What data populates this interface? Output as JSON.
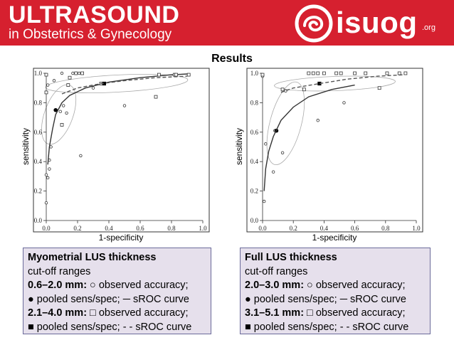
{
  "header": {
    "title": "ULTRASOUND",
    "subtitle": "in Obstetrics & Gynecology",
    "logo_text": "isuog",
    "logo_suffix": ".org",
    "colors": {
      "header_bg": "#d6202f",
      "header_text": "#ffffff"
    }
  },
  "slide": {
    "title": "Results"
  },
  "chart_data": [
    {
      "type": "scatter",
      "title": "",
      "xlabel": "1-specificity",
      "ylabel": "sensitivity",
      "xlim": [
        0,
        1
      ],
      "ylim": [
        0,
        1
      ],
      "xticks": [
        "0.0",
        "0.2",
        "0.4",
        "0.6",
        "0.8",
        "1.0"
      ],
      "yticks": [
        "0.0",
        "0.2",
        "0.4",
        "0.6",
        "0.8",
        "1.0"
      ],
      "series": [
        {
          "name": "0.6–2.0 mm: observed accuracy",
          "marker": "circle-open",
          "points": [
            [
              0.01,
              0.29
            ],
            [
              0.0,
              0.31
            ],
            [
              0.0,
              0.12
            ],
            [
              0.02,
              0.35
            ],
            [
              0.03,
              0.5
            ],
            [
              0.02,
              0.41
            ],
            [
              0.06,
              0.75
            ],
            [
              0.09,
              0.74
            ],
            [
              0.11,
              0.78
            ],
            [
              0.13,
              0.73
            ],
            [
              0.22,
              0.44
            ],
            [
              0.05,
              0.95
            ],
            [
              0.1,
              1.0
            ],
            [
              0.17,
              1.0
            ],
            [
              0.21,
              1.0
            ],
            [
              0.3,
              0.9
            ],
            [
              0.5,
              0.78
            ],
            [
              0.01,
              0.92
            ],
            [
              0.0,
              0.99
            ]
          ]
        },
        {
          "name": "0.6–2.0 mm: pooled sens/spec",
          "marker": "circle-filled",
          "points": [
            [
              0.06,
              0.75
            ]
          ]
        },
        {
          "name": "0.6–2.0 mm: sROC curve",
          "line": "solid",
          "points": [
            [
              0.01,
              0.38
            ],
            [
              0.02,
              0.5
            ],
            [
              0.04,
              0.62
            ],
            [
              0.06,
              0.72
            ],
            [
              0.1,
              0.8
            ],
            [
              0.15,
              0.85
            ],
            [
              0.25,
              0.9
            ],
            [
              0.4,
              0.94
            ],
            [
              0.6,
              0.97
            ],
            [
              0.8,
              0.99
            ],
            [
              0.9,
              0.995
            ]
          ]
        },
        {
          "name": "2.1–4.0 mm: observed accuracy",
          "marker": "square-open",
          "points": [
            [
              0.0,
              0.99
            ],
            [
              0.0,
              0.87
            ],
            [
              0.19,
              1.0
            ],
            [
              0.23,
              1.0
            ],
            [
              0.14,
              0.92
            ],
            [
              0.1,
              0.65
            ],
            [
              0.7,
              0.84
            ],
            [
              0.72,
              0.99
            ],
            [
              0.82,
              0.99
            ],
            [
              0.83,
              0.99
            ],
            [
              0.91,
              0.99
            ],
            [
              0.35,
              0.93
            ],
            [
              0.15,
              0.97
            ]
          ]
        },
        {
          "name": "2.1–4.0 mm: pooled sens/spec",
          "marker": "square-filled",
          "points": [
            [
              0.37,
              0.93
            ]
          ]
        },
        {
          "name": "2.1–4.0 mm: sROC curve",
          "line": "dashed",
          "points": [
            [
              0.1,
              0.86
            ],
            [
              0.2,
              0.9
            ],
            [
              0.35,
              0.93
            ],
            [
              0.5,
              0.95
            ],
            [
              0.7,
              0.97
            ],
            [
              0.9,
              0.98
            ]
          ]
        }
      ]
    },
    {
      "type": "scatter",
      "title": "",
      "xlabel": "1-specificity",
      "ylabel": "sensitivity",
      "xlim": [
        0,
        1
      ],
      "ylim": [
        0,
        1
      ],
      "xticks": [
        "0.0",
        "0.2",
        "0.4",
        "0.6",
        "0.8",
        "1.0"
      ],
      "yticks": [
        "0.0",
        "0.2",
        "0.4",
        "0.6",
        "0.8",
        "1.0"
      ],
      "series": [
        {
          "name": "2.0–3.0 mm: observed accuracy",
          "marker": "circle-open",
          "points": [
            [
              0.01,
              0.13
            ],
            [
              0.07,
              0.33
            ],
            [
              0.13,
              0.46
            ],
            [
              0.02,
              0.52
            ],
            [
              0.08,
              0.61
            ],
            [
              0.36,
              0.68
            ],
            [
              0.53,
              0.8
            ],
            [
              0.15,
              0.88
            ],
            [
              0.0,
              0.98
            ]
          ]
        },
        {
          "name": "2.0–3.0 mm: pooled sens/spec",
          "marker": "circle-filled",
          "points": [
            [
              0.09,
              0.61
            ]
          ]
        },
        {
          "name": "2.0–3.0 mm: sROC curve",
          "line": "solid",
          "points": [
            [
              0.01,
              0.2
            ],
            [
              0.02,
              0.35
            ],
            [
              0.04,
              0.47
            ],
            [
              0.07,
              0.57
            ],
            [
              0.12,
              0.68
            ],
            [
              0.2,
              0.77
            ],
            [
              0.3,
              0.84
            ],
            [
              0.45,
              0.89
            ],
            [
              0.6,
              0.92
            ]
          ]
        },
        {
          "name": "3.1–5.1 mm: observed accuracy",
          "marker": "square-open",
          "points": [
            [
              0.0,
              0.99
            ],
            [
              0.3,
              1.0
            ],
            [
              0.33,
              1.0
            ],
            [
              0.36,
              1.0
            ],
            [
              0.4,
              1.0
            ],
            [
              0.48,
              1.0
            ],
            [
              0.51,
              1.0
            ],
            [
              0.6,
              1.0
            ],
            [
              0.67,
              1.0
            ],
            [
              0.81,
              1.0
            ],
            [
              0.89,
              1.0
            ],
            [
              0.93,
              1.0
            ],
            [
              0.76,
              0.9
            ],
            [
              0.27,
              0.89
            ],
            [
              0.13,
              0.89
            ]
          ]
        },
        {
          "name": "3.1–5.1 mm: pooled sens/spec",
          "marker": "square-filled",
          "points": [
            [
              0.37,
              0.93
            ]
          ]
        },
        {
          "name": "3.1–5.1 mm: sROC curve",
          "line": "dashed",
          "points": [
            [
              0.12,
              0.87
            ],
            [
              0.2,
              0.9
            ],
            [
              0.37,
              0.93
            ],
            [
              0.55,
              0.96
            ],
            [
              0.75,
              0.98
            ],
            [
              0.92,
              0.99
            ]
          ]
        }
      ]
    }
  ],
  "legends": {
    "left": {
      "heading": "Myometrial LUS thickness",
      "line2": "cut-off ranges",
      "range1": "0.6–2.0 mm:",
      "range1_text": " ○ observed accuracy;",
      "line4": "● pooled sens/spec; ─ sROC curve",
      "range2": "2.1–4.0 mm:",
      "range2_text": " □ observed accuracy;",
      "line6": "■ pooled sens/spec; - - sROC curve"
    },
    "right": {
      "heading": "Full LUS thickness",
      "line2": "cut-off ranges",
      "range1": "2.0–3.0 mm:",
      "range1_text": " ○ observed accuracy;",
      "line4": "● pooled sens/spec; ─ sROC curve",
      "range2": "3.1–5.1 mm:",
      "range2_text": " □ observed accuracy;",
      "line6": "■ pooled sens/spec; - - sROC curve"
    },
    "colors": {
      "box_bg": "#e6e0ec",
      "box_border": "#6b6b9a"
    }
  }
}
